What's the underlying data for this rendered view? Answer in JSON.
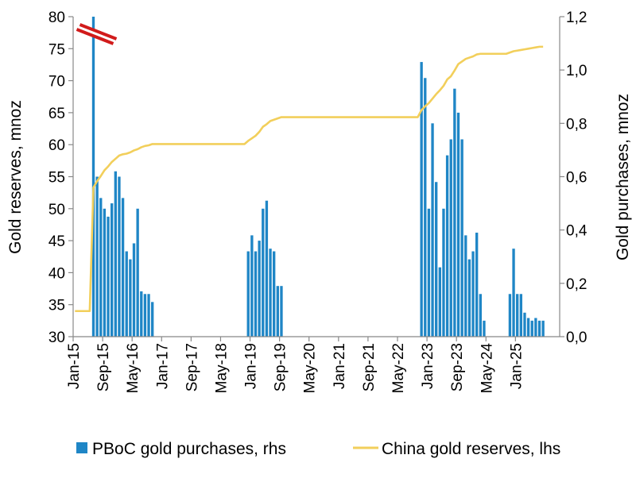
{
  "chart_data": {
    "type": "bar+line",
    "ylabel_left": "Gold reserves, mnoz",
    "ylabel_right": "Gold purchases, mnoz",
    "ylim_left": [
      30,
      80
    ],
    "ylim_right": [
      0.0,
      1.2
    ],
    "yticks_left": [
      "30",
      "35",
      "40",
      "45",
      "50",
      "55",
      "60",
      "65",
      "70",
      "75",
      "80"
    ],
    "yticks_right": [
      "0,0",
      "0,2",
      "0,4",
      "0,6",
      "0,8",
      "1,0",
      "1,2"
    ],
    "x_tick_labels": [
      "Jan-15",
      "Sep-15",
      "May-16",
      "Jan-17",
      "Sep-17",
      "May-18",
      "Jan-19",
      "Sep-19",
      "May-20",
      "Jan-21",
      "Sep-21",
      "May-22",
      "Jan-23",
      "Sep-23",
      "May-24",
      "Jan-25"
    ],
    "x_tick_month_index": [
      0,
      8,
      16,
      24,
      32,
      40,
      48,
      56,
      64,
      72,
      80,
      88,
      96,
      104,
      112,
      120
    ],
    "x_range_months": [
      0,
      131
    ],
    "axis_break_marker": "truncated bar (Jul-15)",
    "series": [
      {
        "name": "PBoC gold purchases, rhs",
        "type": "bar",
        "axis": "right",
        "color": "#1f86c6",
        "points": [
          {
            "x": "Jun-15",
            "y": 1.2
          },
          {
            "x": "Jul-15",
            "y": 0.6
          },
          {
            "x": "Aug-15",
            "y": 0.52
          },
          {
            "x": "Sep-15",
            "y": 0.48
          },
          {
            "x": "Oct-15",
            "y": 0.45
          },
          {
            "x": "Nov-15",
            "y": 0.5
          },
          {
            "x": "Dec-15",
            "y": 0.62
          },
          {
            "x": "Jan-16",
            "y": 0.6
          },
          {
            "x": "Feb-16",
            "y": 0.52
          },
          {
            "x": "Mar-16",
            "y": 0.32
          },
          {
            "x": "Apr-16",
            "y": 0.29
          },
          {
            "x": "May-16",
            "y": 0.35
          },
          {
            "x": "Jun-16",
            "y": 0.48
          },
          {
            "x": "Jul-16",
            "y": 0.17
          },
          {
            "x": "Aug-16",
            "y": 0.16
          },
          {
            "x": "Sep-16",
            "y": 0.16
          },
          {
            "x": "Oct-16",
            "y": 0.13
          },
          {
            "x": "Dec-18",
            "y": 0.32
          },
          {
            "x": "Jan-19",
            "y": 0.38
          },
          {
            "x": "Feb-19",
            "y": 0.32
          },
          {
            "x": "Mar-19",
            "y": 0.36
          },
          {
            "x": "Apr-19",
            "y": 0.48
          },
          {
            "x": "May-19",
            "y": 0.51
          },
          {
            "x": "Jun-19",
            "y": 0.33
          },
          {
            "x": "Jul-19",
            "y": 0.32
          },
          {
            "x": "Aug-19",
            "y": 0.19
          },
          {
            "x": "Sep-19",
            "y": 0.19
          },
          {
            "x": "Nov-22",
            "y": 1.03
          },
          {
            "x": "Dec-22",
            "y": 0.97
          },
          {
            "x": "Jan-23",
            "y": 0.48
          },
          {
            "x": "Feb-23",
            "y": 0.8
          },
          {
            "x": "Mar-23",
            "y": 0.58
          },
          {
            "x": "Apr-23",
            "y": 0.26
          },
          {
            "x": "May-23",
            "y": 0.48
          },
          {
            "x": "Jun-23",
            "y": 0.68
          },
          {
            "x": "Jul-23",
            "y": 0.74
          },
          {
            "x": "Aug-23",
            "y": 0.93
          },
          {
            "x": "Sep-23",
            "y": 0.84
          },
          {
            "x": "Oct-23",
            "y": 0.74
          },
          {
            "x": "Nov-23",
            "y": 0.38
          },
          {
            "x": "Dec-23",
            "y": 0.29
          },
          {
            "x": "Jan-24",
            "y": 0.32
          },
          {
            "x": "Feb-24",
            "y": 0.39
          },
          {
            "x": "Mar-24",
            "y": 0.16
          },
          {
            "x": "Apr-24",
            "y": 0.06
          },
          {
            "x": "Nov-24",
            "y": 0.16
          },
          {
            "x": "Dec-24",
            "y": 0.33
          },
          {
            "x": "Jan-25",
            "y": 0.16
          },
          {
            "x": "Feb-25",
            "y": 0.16
          },
          {
            "x": "Mar-25",
            "y": 0.09
          },
          {
            "x": "Apr-25",
            "y": 0.07
          },
          {
            "x": "May-25",
            "y": 0.06
          },
          {
            "x": "Jun-25",
            "y": 0.07
          },
          {
            "x": "Jul-25",
            "y": 0.06
          },
          {
            "x": "Aug-25",
            "y": 0.06
          }
        ]
      },
      {
        "name": "China gold reserves, lhs",
        "type": "line",
        "axis": "left",
        "color": "#f2cf5b",
        "points": [
          {
            "x": "Jan-15",
            "y": 34.0
          },
          {
            "x": "May-15",
            "y": 34.0
          },
          {
            "x": "Jun-15",
            "y": 53.3
          },
          {
            "x": "Jul-15",
            "y": 54.3
          },
          {
            "x": "Aug-15",
            "y": 55.1
          },
          {
            "x": "Sep-15",
            "y": 56.0
          },
          {
            "x": "Oct-15",
            "y": 56.6
          },
          {
            "x": "Nov-15",
            "y": 57.3
          },
          {
            "x": "Dec-15",
            "y": 57.8
          },
          {
            "x": "Jan-16",
            "y": 58.3
          },
          {
            "x": "Feb-16",
            "y": 58.5
          },
          {
            "x": "Mar-16",
            "y": 58.6
          },
          {
            "x": "Apr-16",
            "y": 58.8
          },
          {
            "x": "May-16",
            "y": 59.1
          },
          {
            "x": "Jun-16",
            "y": 59.3
          },
          {
            "x": "Jul-16",
            "y": 59.6
          },
          {
            "x": "Aug-16",
            "y": 59.8
          },
          {
            "x": "Sep-16",
            "y": 59.9
          },
          {
            "x": "Oct-16",
            "y": 60.1
          },
          {
            "x": "Nov-18",
            "y": 60.1
          },
          {
            "x": "Dec-18",
            "y": 60.6
          },
          {
            "x": "Jan-19",
            "y": 61.0
          },
          {
            "x": "Feb-19",
            "y": 61.4
          },
          {
            "x": "Mar-19",
            "y": 62.0
          },
          {
            "x": "Apr-19",
            "y": 62.8
          },
          {
            "x": "May-19",
            "y": 63.2
          },
          {
            "x": "Jun-19",
            "y": 63.7
          },
          {
            "x": "Jul-19",
            "y": 63.9
          },
          {
            "x": "Aug-19",
            "y": 64.1
          },
          {
            "x": "Sep-19",
            "y": 64.3
          },
          {
            "x": "Oct-22",
            "y": 64.3
          },
          {
            "x": "Nov-22",
            "y": 65.4
          },
          {
            "x": "Dec-22",
            "y": 66.0
          },
          {
            "x": "Jan-23",
            "y": 66.5
          },
          {
            "x": "Feb-23",
            "y": 67.2
          },
          {
            "x": "Mar-23",
            "y": 67.9
          },
          {
            "x": "Apr-23",
            "y": 68.5
          },
          {
            "x": "May-23",
            "y": 69.2
          },
          {
            "x": "Jun-23",
            "y": 70.2
          },
          {
            "x": "Jul-23",
            "y": 70.7
          },
          {
            "x": "Aug-23",
            "y": 71.6
          },
          {
            "x": "Sep-23",
            "y": 72.6
          },
          {
            "x": "Oct-23",
            "y": 73.0
          },
          {
            "x": "Nov-23",
            "y": 73.4
          },
          {
            "x": "Dec-23",
            "y": 73.6
          },
          {
            "x": "Jan-24",
            "y": 73.8
          },
          {
            "x": "Feb-24",
            "y": 74.1
          },
          {
            "x": "Mar-24",
            "y": 74.2
          },
          {
            "x": "Apr-24",
            "y": 74.2
          },
          {
            "x": "Oct-24",
            "y": 74.2
          },
          {
            "x": "Nov-24",
            "y": 74.4
          },
          {
            "x": "Dec-24",
            "y": 74.6
          },
          {
            "x": "Jan-25",
            "y": 74.7
          },
          {
            "x": "Feb-25",
            "y": 74.8
          },
          {
            "x": "Mar-25",
            "y": 74.9
          },
          {
            "x": "Apr-25",
            "y": 75.0
          },
          {
            "x": "May-25",
            "y": 75.1
          },
          {
            "x": "Jun-25",
            "y": 75.2
          },
          {
            "x": "Jul-25",
            "y": 75.3
          },
          {
            "x": "Aug-25",
            "y": 75.3
          }
        ]
      }
    ],
    "legend": {
      "placement": "bottom",
      "entries": [
        {
          "label": "PBoC gold purchases, rhs",
          "color": "#1f86c6",
          "marker": "square"
        },
        {
          "label": "China gold reserves, lhs",
          "color": "#f2cf5b",
          "marker": "line"
        }
      ]
    },
    "grid": false
  }
}
